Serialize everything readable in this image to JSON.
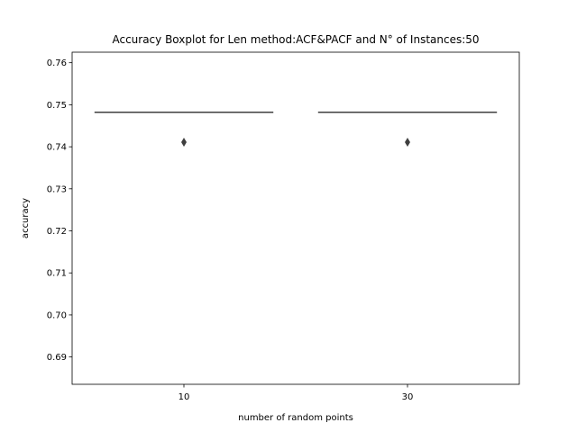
{
  "chart_data": {
    "type": "boxplot",
    "title": "Accuracy Boxplot for Len method:ACF&PACF and N° of Instances:50",
    "xlabel": "number of random points",
    "ylabel": "accuracy",
    "categories": [
      "10",
      "30"
    ],
    "ylim": [
      0.6835,
      0.7625
    ],
    "yticks": [
      0.69,
      0.7,
      0.71,
      0.72,
      0.73,
      0.74,
      0.75,
      0.76
    ],
    "ytick_labels": [
      "0.69",
      "0.70",
      "0.71",
      "0.72",
      "0.73",
      "0.74",
      "0.75",
      "0.76"
    ],
    "boxes": [
      {
        "category": "10",
        "q1": 0.7482,
        "median": 0.7482,
        "q3": 0.7482,
        "whisker_low": 0.7482,
        "whisker_high": 0.7482,
        "outliers": [
          0.7411
        ]
      },
      {
        "category": "30",
        "q1": 0.7482,
        "median": 0.7482,
        "q3": 0.7482,
        "whisker_low": 0.7482,
        "whisker_high": 0.7482,
        "outliers": [
          0.7411
        ]
      }
    ],
    "grid": false,
    "colors": {
      "box_line": "#3f3f3f",
      "outlier": "#3f3f3f",
      "axis": "#000000"
    }
  }
}
